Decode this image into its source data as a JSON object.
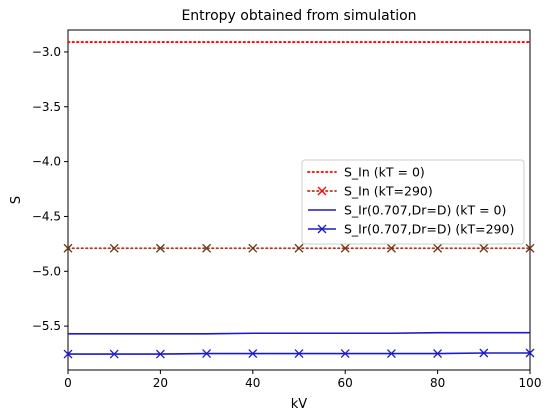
{
  "chart_data": {
    "type": "line",
    "title": "Entropy obtained from simulation",
    "xlabel": "kV",
    "ylabel": "S",
    "xlim": [
      0,
      100
    ],
    "ylim": [
      -5.9,
      -2.8
    ],
    "xticks": [
      0,
      20,
      40,
      60,
      80,
      100
    ],
    "yticks": [
      -3.0,
      -3.5,
      -4.0,
      -4.5,
      -5.0,
      -5.5
    ],
    "xtick_labels": [
      "0",
      "20",
      "40",
      "60",
      "80",
      "100"
    ],
    "ytick_labels": [
      "−3.0",
      "−3.5",
      "−4.0",
      "−4.5",
      "−5.0",
      "−5.5"
    ],
    "grid": false,
    "legend_position": "center-right",
    "x": [
      0,
      10,
      20,
      30,
      40,
      50,
      60,
      70,
      80,
      90,
      100
    ],
    "series": [
      {
        "name": "S_In (kT = 0)",
        "color": "#ff0000",
        "linestyle": "dotted",
        "marker": "none",
        "values": [
          -2.91,
          -2.91,
          -2.91,
          -2.91,
          -2.91,
          -2.91,
          -2.91,
          -2.91,
          -2.91,
          -2.91,
          -2.91
        ]
      },
      {
        "name": "S_In (kT=290)",
        "color": "#b03a1a",
        "marker_color": "#ff0000",
        "linestyle": "dotted",
        "marker": "x",
        "values": [
          -4.79,
          -4.79,
          -4.79,
          -4.79,
          -4.79,
          -4.79,
          -4.79,
          -4.79,
          -4.79,
          -4.79,
          -4.79
        ]
      },
      {
        "name": "S_Ir(0.707,Dr=D) (kT = 0)",
        "color": "#1a1acc",
        "linestyle": "solid",
        "marker": "none",
        "values": [
          -5.57,
          -5.57,
          -5.57,
          -5.57,
          -5.565,
          -5.565,
          -5.565,
          -5.565,
          -5.56,
          -5.56,
          -5.56
        ]
      },
      {
        "name": "S_Ir(0.707,Dr=D) (kT=290)",
        "color": "#1a1acc",
        "linestyle": "solid",
        "marker": "x",
        "values": [
          -5.755,
          -5.755,
          -5.755,
          -5.75,
          -5.75,
          -5.75,
          -5.75,
          -5.75,
          -5.75,
          -5.745,
          -5.745
        ]
      }
    ]
  }
}
